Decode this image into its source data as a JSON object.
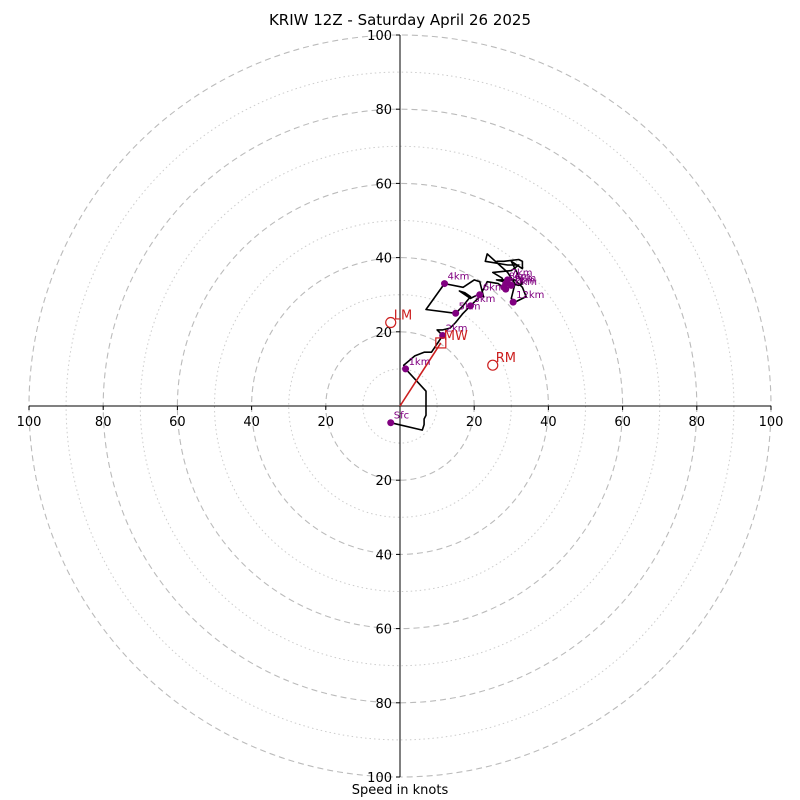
{
  "chart_data": {
    "type": "hodograph",
    "title": "KRIW 12Z - Saturday April 26 2025",
    "xlabel": "Speed in knots",
    "units": "knots",
    "range": [
      -100,
      100
    ],
    "major_rings": [
      20,
      40,
      60,
      80,
      100
    ],
    "minor_rings": [
      10,
      30,
      50,
      70,
      90
    ],
    "tick_labels": [
      "100",
      "80",
      "60",
      "40",
      "20",
      "20",
      "40",
      "60",
      "80",
      "100"
    ],
    "grid": true,
    "colors": {
      "trace": "#000000",
      "markers": "#800080",
      "storm_motion": "#cc1f1f",
      "grid": "#bbbbbb"
    },
    "trace": [
      [
        -2.5,
        -4.5
      ],
      [
        6,
        -6.5
      ],
      [
        6.5,
        -5
      ],
      [
        6.5,
        -3.5
      ],
      [
        7,
        -2.5
      ],
      [
        7,
        4
      ],
      [
        1.5,
        10
      ],
      [
        1,
        11
      ],
      [
        4,
        13.5
      ],
      [
        6.5,
        14.5
      ],
      [
        8.5,
        14.5
      ],
      [
        11.5,
        19
      ],
      [
        10,
        20.5
      ],
      [
        11.5,
        20.5
      ],
      [
        13.5,
        21
      ],
      [
        15,
        22.5
      ],
      [
        17,
        25
      ],
      [
        19,
        27
      ],
      [
        21.5,
        29.5
      ],
      [
        22.5,
        29.5
      ],
      [
        21.5,
        33.5
      ],
      [
        20,
        34
      ],
      [
        17,
        32
      ],
      [
        12,
        33
      ],
      [
        7,
        26
      ],
      [
        15,
        25
      ],
      [
        17,
        27
      ],
      [
        19,
        29.5
      ],
      [
        17.5,
        30.5
      ],
      [
        16,
        31
      ],
      [
        19,
        29
      ],
      [
        22,
        30.5
      ],
      [
        23.5,
        33.5
      ],
      [
        26.5,
        33
      ],
      [
        29,
        31
      ],
      [
        27.5,
        34.5
      ],
      [
        25,
        36
      ],
      [
        30,
        36.5
      ],
      [
        32,
        38
      ],
      [
        29,
        38
      ],
      [
        23,
        39
      ],
      [
        23.5,
        41
      ],
      [
        29,
        36
      ],
      [
        31,
        33
      ],
      [
        30,
        29
      ],
      [
        31,
        28
      ],
      [
        34,
        29.5
      ],
      [
        33,
        32
      ],
      [
        31,
        34
      ],
      [
        26,
        34
      ],
      [
        30,
        33
      ],
      [
        32,
        32.5
      ],
      [
        33,
        33
      ],
      [
        30,
        39
      ],
      [
        33,
        37
      ],
      [
        33,
        39
      ],
      [
        32,
        39.5
      ],
      [
        28,
        39
      ],
      [
        26,
        39
      ]
    ],
    "height_markers": [
      {
        "label": "Sfc",
        "u": -2.5,
        "v": -4.5
      },
      {
        "label": "1km",
        "u": 1.5,
        "v": 10
      },
      {
        "label": "2km",
        "u": 11.5,
        "v": 19
      },
      {
        "label": "3km",
        "u": 19,
        "v": 27
      },
      {
        "label": "4km",
        "u": 12,
        "v": 33
      },
      {
        "label": "5km",
        "u": 15,
        "v": 25
      },
      {
        "label": "6km",
        "u": 21.5,
        "v": 30
      },
      {
        "label": "7km",
        "u": 29,
        "v": 34
      },
      {
        "label": "8km",
        "u": 28.5,
        "v": 33
      },
      {
        "label": "9km",
        "u": 30,
        "v": 32.5
      },
      {
        "label": "10km",
        "u": 28.5,
        "v": 31.5
      },
      {
        "label": "11km",
        "u": 28,
        "v": 32
      },
      {
        "label": "12km",
        "u": 30.5,
        "v": 28
      }
    ],
    "storm_motion": [
      {
        "label": "LM",
        "u": -2.5,
        "v": 22.5,
        "shape": "circle"
      },
      {
        "label": "RM",
        "u": 25,
        "v": 11,
        "shape": "circle"
      },
      {
        "label": "MW",
        "u": 11,
        "v": 17,
        "shape": "square"
      }
    ],
    "shear_vector": {
      "from": [
        0,
        0
      ],
      "to": [
        11,
        17
      ]
    }
  }
}
